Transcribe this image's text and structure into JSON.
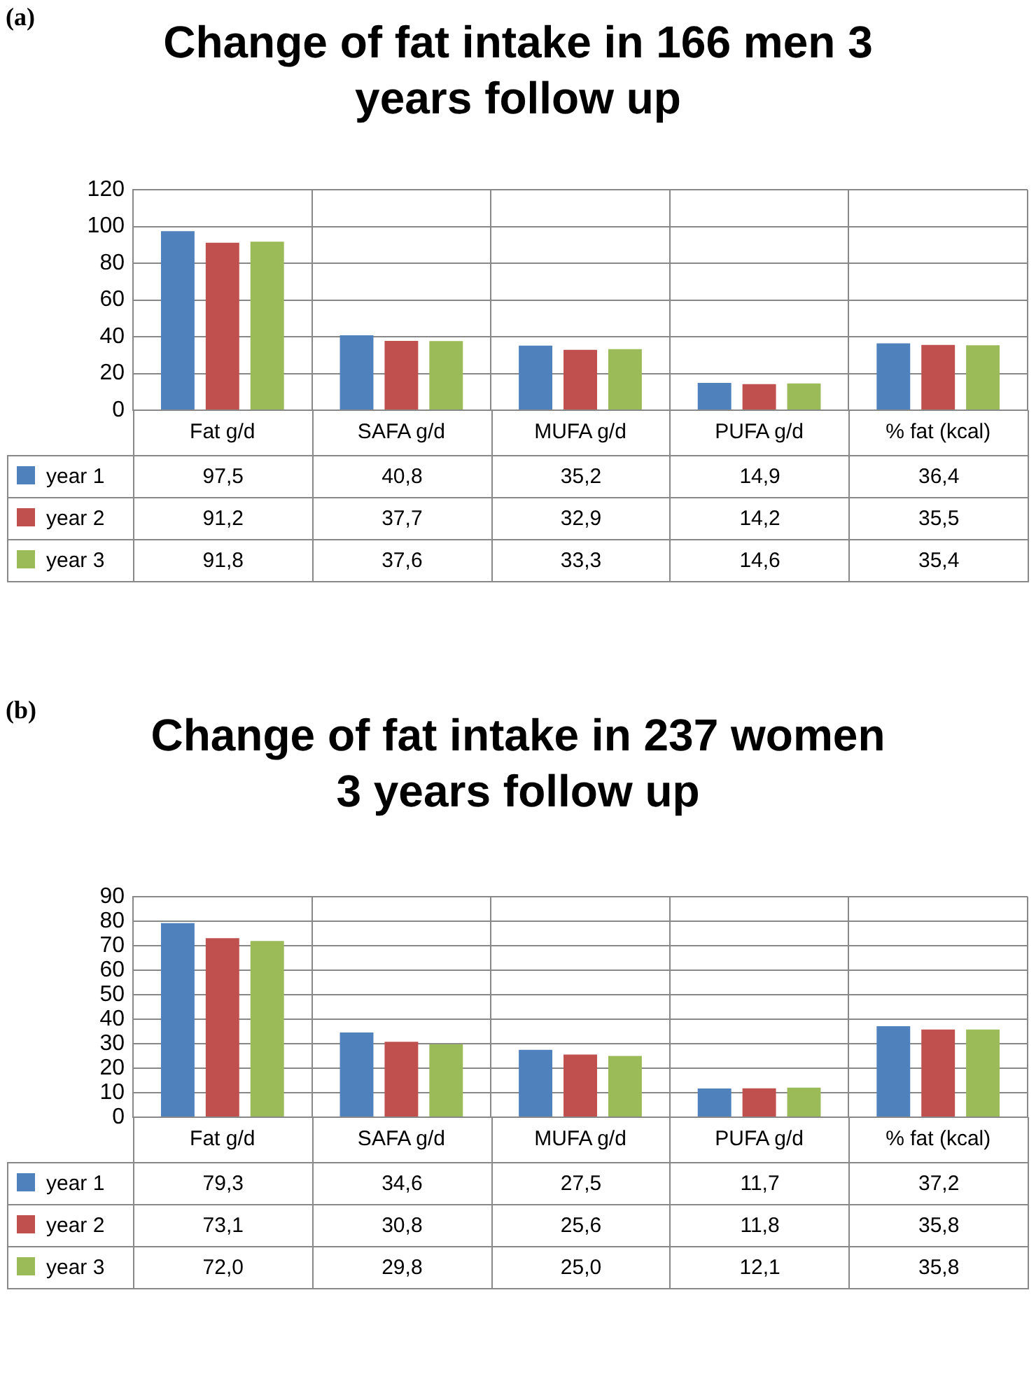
{
  "chart_data": [
    {
      "type": "bar",
      "title": "Change of fat intake in 166 men 3 years follow up",
      "annotations": [
        "(a)"
      ],
      "categories": [
        "Fat g/d",
        "SAFA g/d",
        "MUFA g/d",
        "PUFA g/d",
        "% fat (kcal)"
      ],
      "series": [
        {
          "name": "year 1",
          "color": "#4f81bd",
          "values": [
            97.5,
            40.8,
            35.2,
            14.9,
            36.4
          ],
          "value_labels": [
            "97,5",
            "40,8",
            "35,2",
            "14,9",
            "36,4"
          ]
        },
        {
          "name": "year 2",
          "color": "#c0504d",
          "values": [
            91.2,
            37.7,
            32.9,
            14.2,
            35.5
          ],
          "value_labels": [
            "91,2",
            "37,7",
            "32,9",
            "14,2",
            "35,5"
          ]
        },
        {
          "name": "year 3",
          "color": "#9bbb59",
          "values": [
            91.8,
            37.6,
            33.3,
            14.6,
            35.4
          ],
          "value_labels": [
            "91,8",
            "37,6",
            "33,3",
            "14,6",
            "35,4"
          ]
        }
      ],
      "ylim": [
        0,
        120
      ],
      "yticks": [
        0,
        20,
        40,
        60,
        80,
        100,
        120
      ],
      "grid": true,
      "legend": "left"
    },
    {
      "type": "bar",
      "title": "Change of fat intake in 237 women 3 years follow up",
      "annotations": [
        "(b)"
      ],
      "categories": [
        "Fat g/d",
        "SAFA g/d",
        "MUFA g/d",
        "PUFA g/d",
        "% fat (kcal)"
      ],
      "series": [
        {
          "name": "year 1",
          "color": "#4f81bd",
          "values": [
            79.3,
            34.6,
            27.5,
            11.7,
            37.2
          ],
          "value_labels": [
            "79,3",
            "34,6",
            "27,5",
            "11,7",
            "37,2"
          ]
        },
        {
          "name": "year 2",
          "color": "#c0504d",
          "values": [
            73.1,
            30.8,
            25.6,
            11.8,
            35.8
          ],
          "value_labels": [
            "73,1",
            "30,8",
            "25,6",
            "11,8",
            "35,8"
          ]
        },
        {
          "name": "year 3",
          "color": "#9bbb59",
          "values": [
            72.0,
            29.8,
            25.0,
            12.1,
            35.8
          ],
          "value_labels": [
            "72,0",
            "29,8",
            "25,0",
            "12,1",
            "35,8"
          ]
        }
      ],
      "ylim": [
        0,
        90
      ],
      "yticks": [
        0,
        10,
        20,
        30,
        40,
        50,
        60,
        70,
        80,
        90
      ],
      "grid": true,
      "legend": "left"
    }
  ]
}
